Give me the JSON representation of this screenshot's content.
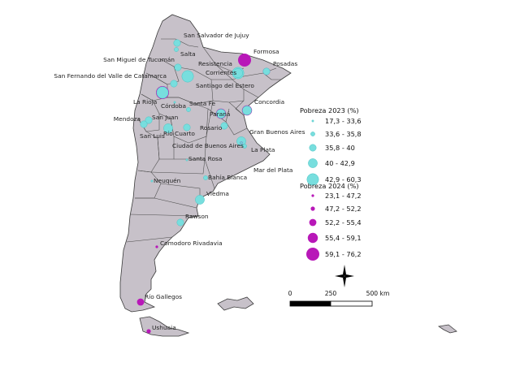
{
  "map": {
    "colors": {
      "land": "#c7c1c9",
      "border": "#3a3a3a",
      "pov2023": "#78dede",
      "pov2023_stroke": "#4cc4c4",
      "pov2024": "#b818b8"
    },
    "legend_2023": {
      "title": "Pobreza 2023 (%)",
      "classes": [
        "17,3 - 33,6",
        "33,6 - 35,8",
        "35,8 - 40",
        "40 - 42,9",
        "42,9 - 60,3"
      ]
    },
    "legend_2024": {
      "title": "Pobreza 2024 (%)",
      "classes": [
        "23,1 - 47,2",
        "47,2 - 52,2",
        "52,2 - 55,4",
        "55,4 - 59,1",
        "59,1 - 76,2"
      ]
    },
    "scale_bar": {
      "labels": [
        "0",
        "250",
        "500 km"
      ]
    },
    "north_arrow_icon": "compass-rose-icon",
    "cities": [
      {
        "id": "san-salvador-de-jujuy",
        "label": "San Salvador de Jujuy",
        "c2023": 3,
        "c2024": 2
      },
      {
        "id": "salta",
        "label": "Salta",
        "c2023": 2,
        "c2024": 0
      },
      {
        "id": "formosa",
        "label": "Formosa",
        "c2023": 0,
        "c2024": 5
      },
      {
        "id": "san-miguel-de-tucuman",
        "label": "San Miguel de Tucumán",
        "c2023": 3,
        "c2024": 2
      },
      {
        "id": "resistencia",
        "label": "Resistencia",
        "c2023": 5,
        "c2024": 4
      },
      {
        "id": "posadas",
        "label": "Posadas",
        "c2023": 3,
        "c2024": 3
      },
      {
        "id": "corrientes",
        "label": "Corrientes",
        "c2023": 5,
        "c2024": 4
      },
      {
        "id": "san-fernando-del-valle-de-catamarca",
        "label": "San Fernando del Valle de Catamarca",
        "c2023": 3,
        "c2024": 2
      },
      {
        "id": "santiago-del-estero",
        "label": "Santiago del Estero",
        "c2023": 4,
        "c2024": 3
      },
      {
        "id": "la-rioja",
        "label": "La Rioja",
        "c2023": 5,
        "c2024": 5
      },
      {
        "id": "santa-fe",
        "label": "Santa Fe",
        "c2023": 2,
        "c2024": 0
      },
      {
        "id": "cordoba",
        "label": "Córdoba",
        "c2023": 1,
        "c2024": 0
      },
      {
        "id": "concordia",
        "label": "Concordia",
        "c2023": 4,
        "c2024": 4
      },
      {
        "id": "san-juan",
        "label": "San Juan",
        "c2023": 3,
        "c2024": 1
      },
      {
        "id": "parana",
        "label": "Paraná",
        "c2023": 4,
        "c2024": 4
      },
      {
        "id": "mendoza",
        "label": "Mendoza",
        "c2023": 3,
        "c2024": 0
      },
      {
        "id": "rio-cuarto",
        "label": "Río Cuarto",
        "c2023": 4,
        "c2024": 0
      },
      {
        "id": "rosario",
        "label": "Rosario",
        "c2023": 3,
        "c2024": 0
      },
      {
        "id": "san-luis",
        "label": "San Luis",
        "c2023": 3,
        "c2024": 0
      },
      {
        "id": "gran-buenos-aires",
        "label": "Gran Buenos Aires",
        "c2023": 4,
        "c2024": 3
      },
      {
        "id": "ciudad-de-buenos-aires",
        "label": "Ciudad de Buenos Aires",
        "c2023": 1,
        "c2024": 1
      },
      {
        "id": "la-plata",
        "label": "La Plata",
        "c2023": 2,
        "c2024": 0
      },
      {
        "id": "santa-rosa",
        "label": "Santa Rosa",
        "c2023": 1,
        "c2024": 0
      },
      {
        "id": "mar-del-plata",
        "label": "Mar del Plata",
        "c2023": 0,
        "c2024": 0
      },
      {
        "id": "bahia-blanca",
        "label": "Bahía Blanca",
        "c2023": 2,
        "c2024": 0
      },
      {
        "id": "neuquen",
        "label": "Neuquén",
        "c2023": 1,
        "c2024": 0
      },
      {
        "id": "viedma",
        "label": "Viedma",
        "c2023": 4,
        "c2024": 0
      },
      {
        "id": "rawson",
        "label": "Rawson",
        "c2023": 3,
        "c2024": 2
      },
      {
        "id": "comodoro-rivadavia",
        "label": "Comodoro Rivadavia",
        "c2023": 0,
        "c2024": 1
      },
      {
        "id": "rio-gallegos",
        "label": "Río Gallegos",
        "c2023": 0,
        "c2024": 3
      },
      {
        "id": "ushuaia",
        "label": "Ushuaia",
        "c2023": 0,
        "c2024": 2
      }
    ]
  }
}
